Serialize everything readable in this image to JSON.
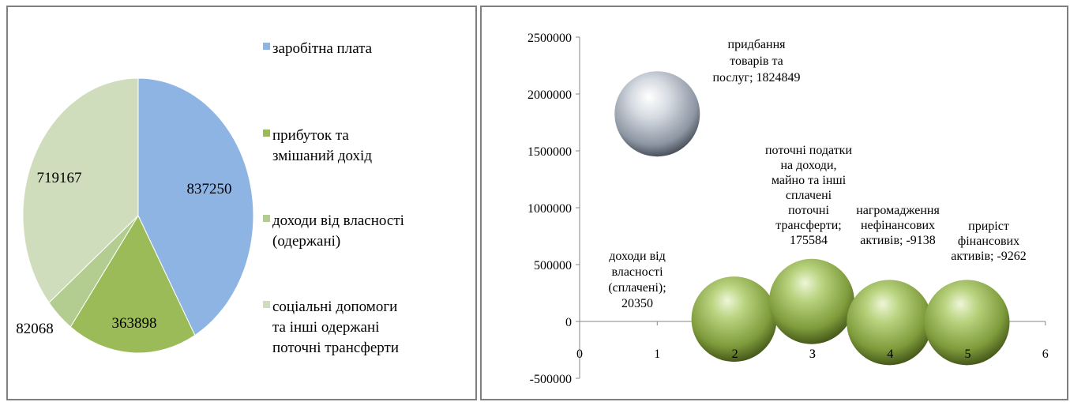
{
  "chart_data": [
    {
      "type": "pie",
      "slices": [
        {
          "label": "заробітна плата",
          "value": 837250,
          "color": "#8eb4e3"
        },
        {
          "label": "прибуток та змішаний дохід",
          "value": 363898,
          "color": "#9bbb59"
        },
        {
          "label": "доходи від власності (одержані)",
          "value": 82068,
          "color": "#b3cc8f"
        },
        {
          "label": "соціальні допомоги та інші одержані поточні трансферти",
          "value": 719167,
          "color": "#d0ddbd"
        }
      ],
      "legend_position": "right"
    },
    {
      "type": "scatter",
      "subtype": "bubble",
      "xlim": [
        0,
        6
      ],
      "ylim": [
        -500000,
        2500000
      ],
      "x_ticks": [
        "0",
        "1",
        "2",
        "3",
        "4",
        "5",
        "6"
      ],
      "y_ticks": [
        "2500000",
        "2000000",
        "1500000",
        "1000000",
        "500000",
        "0",
        "-500000"
      ],
      "points": [
        {
          "x": 1,
          "y": 1824849,
          "label": "придбання товарів та послуг; 1824849",
          "color": "#b4bcc8"
        },
        {
          "x": 2,
          "y": 20350,
          "label": "доходи від власності (сплачені); 20350",
          "color": "#9bbb59"
        },
        {
          "x": 3,
          "y": 175584,
          "label": "поточні податки на доходи, майно та інші сплачені поточні трансферти; 175584",
          "color": "#9bbb59"
        },
        {
          "x": 4,
          "y": -9138,
          "label": "нагромадження нефінансових активів; -9138",
          "color": "#9bbb59"
        },
        {
          "x": 5,
          "y": -9262,
          "label": "приріст фінансових активів; -9262",
          "color": "#9bbb59"
        }
      ]
    }
  ]
}
